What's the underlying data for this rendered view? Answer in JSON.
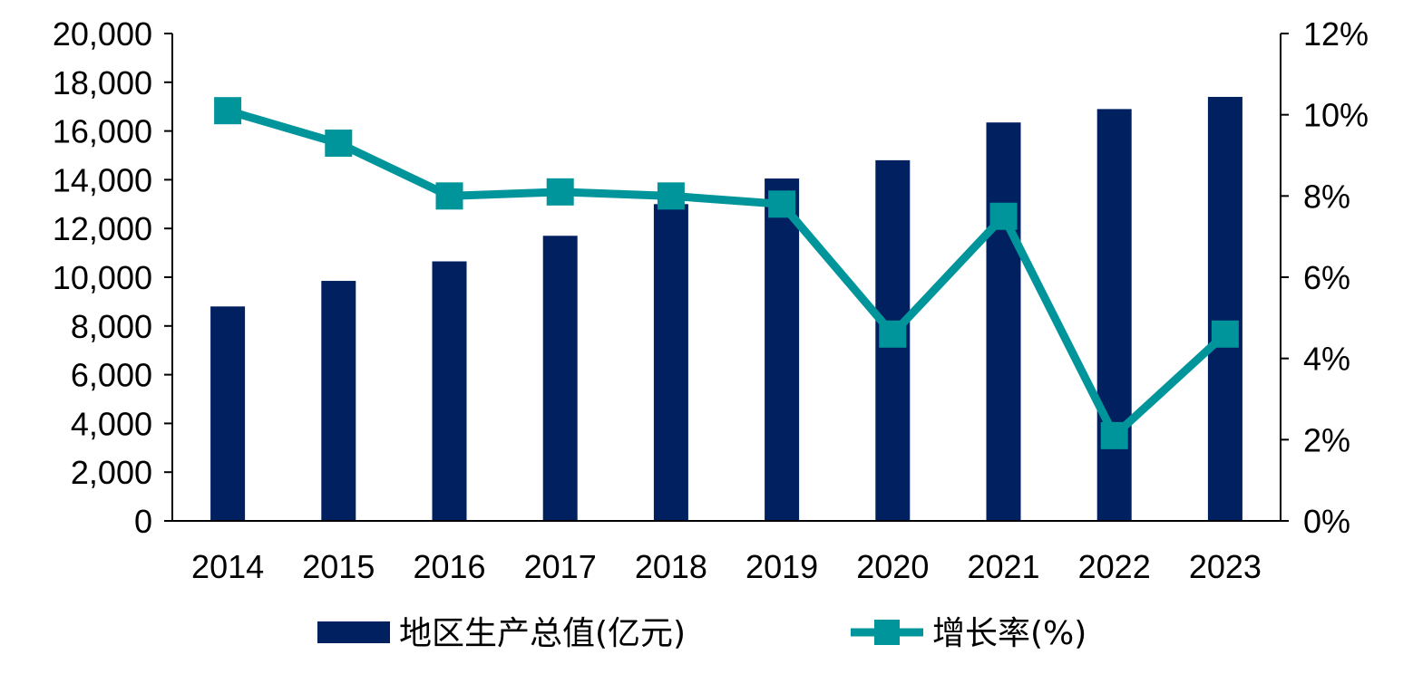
{
  "chart_data": {
    "type": "bar",
    "categories": [
      "2014",
      "2015",
      "2016",
      "2017",
      "2018",
      "2019",
      "2020",
      "2021",
      "2022",
      "2023"
    ],
    "series": [
      {
        "name": "地区生产总值(亿元)",
        "type": "bar",
        "axis": "left",
        "color": "#002060",
        "values": [
          8800,
          9850,
          10650,
          11700,
          13000,
          14050,
          14800,
          16350,
          16900,
          17400
        ]
      },
      {
        "name": "增长率(%)",
        "type": "line",
        "axis": "right",
        "color": "#00959B",
        "marker": "square",
        "values": [
          10.1,
          9.3,
          8.0,
          8.1,
          8.0,
          7.8,
          4.6,
          7.5,
          2.1,
          4.6
        ]
      }
    ],
    "y_left": {
      "lim": [
        0,
        20000
      ],
      "ticks": [
        0,
        2000,
        4000,
        6000,
        8000,
        10000,
        12000,
        14000,
        16000,
        18000,
        20000
      ],
      "tick_labels": [
        "0",
        "2,000",
        "4,000",
        "6,000",
        "8,000",
        "10,000",
        "12,000",
        "14,000",
        "16,000",
        "18,000",
        "20,000"
      ]
    },
    "y_right": {
      "lim": [
        0,
        12
      ],
      "ticks": [
        0,
        2,
        4,
        6,
        8,
        10,
        12
      ],
      "tick_labels": [
        "0%",
        "2%",
        "4%",
        "6%",
        "8%",
        "10%",
        "12%"
      ]
    },
    "title": "",
    "xlabel": "",
    "ylabel": "",
    "grid": false,
    "legend_position": "bottom"
  }
}
